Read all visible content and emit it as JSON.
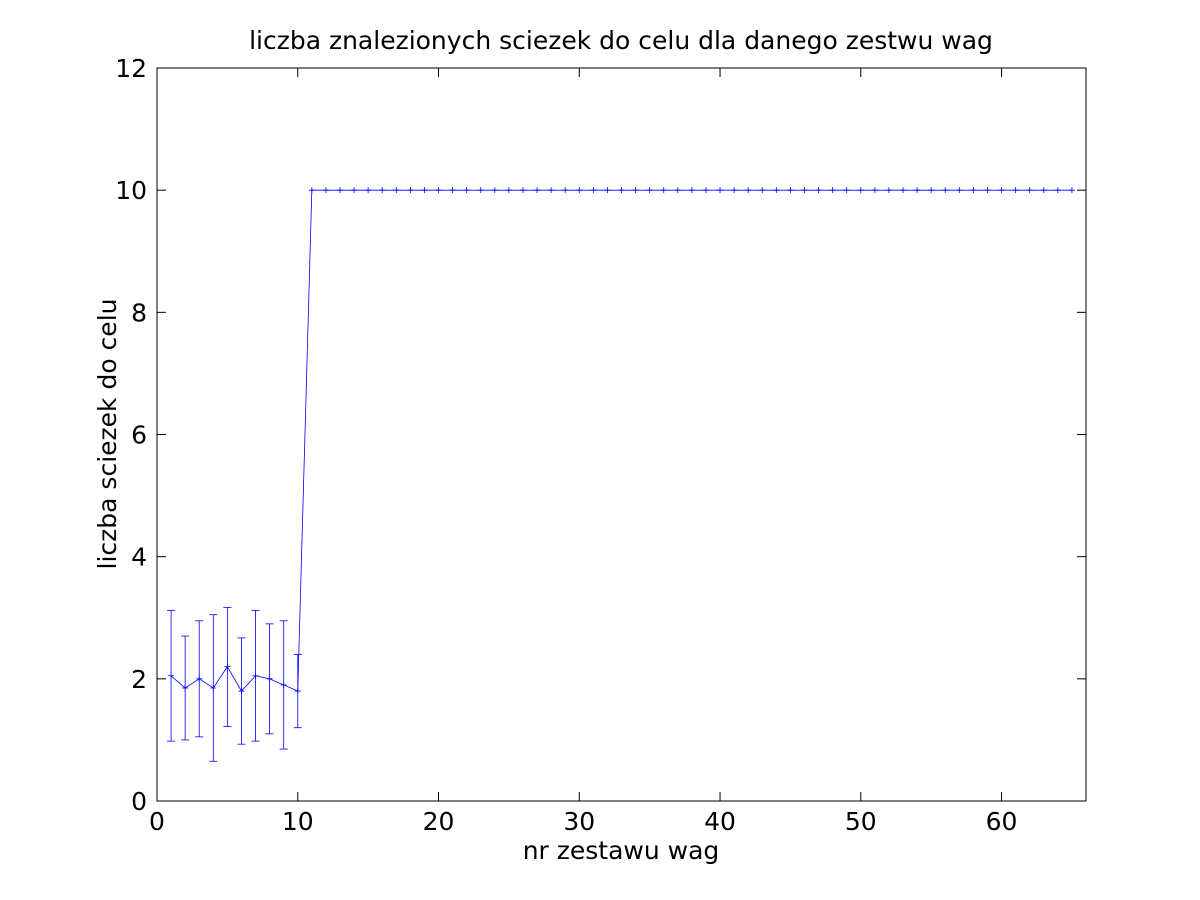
{
  "chart_data": {
    "type": "line",
    "title": "liczba znalezionych sciezek do celu dla danego zestwu wag",
    "xlabel": "nr zestawu wag",
    "ylabel": "liczba sciezek do celu",
    "xlim": [
      0,
      66
    ],
    "ylim": [
      0,
      12
    ],
    "xticks": [
      0,
      10,
      20,
      30,
      40,
      50,
      60
    ],
    "yticks": [
      0,
      2,
      4,
      6,
      8,
      10,
      12
    ],
    "grid": false,
    "legend": "none",
    "series": [
      {
        "color": "#0000ff",
        "marker": "+",
        "x": [
          1,
          2,
          3,
          4,
          5,
          6,
          7,
          8,
          9,
          10,
          11,
          12,
          13,
          14,
          15,
          16,
          17,
          18,
          19,
          20,
          21,
          22,
          23,
          24,
          25,
          26,
          27,
          28,
          29,
          30,
          31,
          32,
          33,
          34,
          35,
          36,
          37,
          38,
          39,
          40,
          41,
          42,
          43,
          44,
          45,
          46,
          47,
          48,
          49,
          50,
          51,
          52,
          53,
          54,
          55,
          56,
          57,
          58,
          59,
          60,
          61,
          62,
          63,
          64,
          65
        ],
        "y": [
          2.05,
          1.85,
          2.0,
          1.85,
          2.2,
          1.8,
          2.05,
          2.0,
          1.9,
          1.8,
          10,
          10,
          10,
          10,
          10,
          10,
          10,
          10,
          10,
          10,
          10,
          10,
          10,
          10,
          10,
          10,
          10,
          10,
          10,
          10,
          10,
          10,
          10,
          10,
          10,
          10,
          10,
          10,
          10,
          10,
          10,
          10,
          10,
          10,
          10,
          10,
          10,
          10,
          10,
          10,
          10,
          10,
          10,
          10,
          10,
          10,
          10,
          10,
          10,
          10,
          10,
          10,
          10,
          10,
          10
        ],
        "error_low": [
          0.98,
          1.0,
          1.05,
          0.65,
          1.22,
          0.93,
          0.98,
          1.1,
          0.85,
          1.2
        ],
        "error_high": [
          3.12,
          2.7,
          2.95,
          3.05,
          3.17,
          2.67,
          3.12,
          2.9,
          2.95,
          2.4
        ]
      }
    ]
  }
}
